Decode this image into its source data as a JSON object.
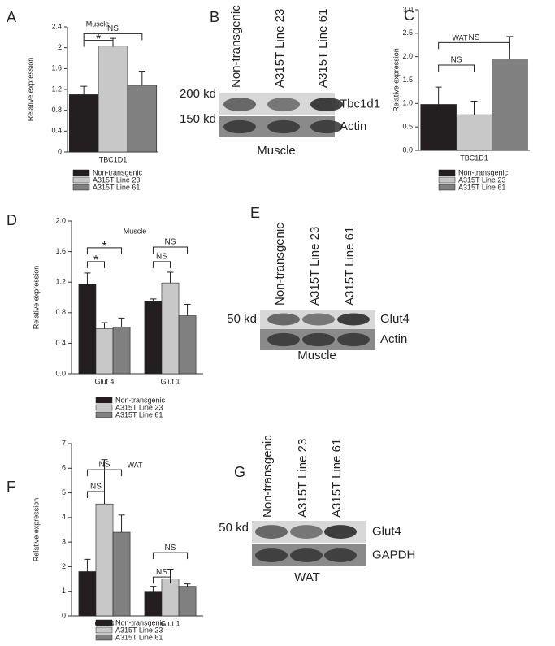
{
  "chart_data": [
    {
      "type": "bar",
      "panel": "A",
      "title": "Muscle",
      "ylabel": "Relative expression",
      "categories": [
        "TBC1D1"
      ],
      "series": [
        {
          "name": "Non-transgenic",
          "color": "#231f20",
          "values": [
            1.1
          ],
          "errors": [
            0.16
          ]
        },
        {
          "name": "A315T Line 23",
          "color": "#c8c8c8",
          "values": [
            2.03
          ],
          "errors": [
            0.15
          ]
        },
        {
          "name": "A315T Line 61",
          "color": "#808080",
          "values": [
            1.28
          ],
          "errors": [
            0.27
          ]
        }
      ],
      "ylim": [
        0,
        2.4
      ],
      "yticks": [
        0,
        0.4,
        0.8,
        1.2,
        1.6,
        2,
        2.4
      ],
      "annotations": [
        "*",
        "NS"
      ]
    },
    {
      "type": "bar",
      "panel": "C",
      "title": "WAT",
      "ylabel": "Relative expression",
      "categories": [
        "TBC1D1"
      ],
      "series": [
        {
          "name": "Non-transgenic",
          "color": "#231f20",
          "values": [
            0.98
          ],
          "errors": [
            0.37
          ]
        },
        {
          "name": "A315T Line 23",
          "color": "#c8c8c8",
          "values": [
            0.76
          ],
          "errors": [
            0.29
          ]
        },
        {
          "name": "A315T Line 61",
          "color": "#808080",
          "values": [
            1.95
          ],
          "errors": [
            0.48
          ]
        }
      ],
      "ylim": [
        0,
        3
      ],
      "yticks": [
        {
          "value": 0,
          "label": "0.0"
        },
        {
          "value": 0.5,
          "label": "0.5"
        },
        {
          "value": 1,
          "label": "1.0"
        },
        {
          "value": 1.5,
          "label": "1.5"
        },
        {
          "value": 2,
          "label": "2.0"
        },
        {
          "value": 2.5,
          "label": "2.5"
        },
        {
          "value": 3,
          "label": "3.0"
        }
      ],
      "annotations": [
        "NS",
        "NS"
      ]
    },
    {
      "type": "bar",
      "panel": "D",
      "title": "Muscle",
      "ylabel": "Relative expression",
      "categories": [
        "Glut 4",
        "Glut 1"
      ],
      "series": [
        {
          "name": "Non-transgenic",
          "color": "#231f20",
          "values": [
            1.17,
            0.95
          ],
          "errors": [
            0.15,
            0.03
          ]
        },
        {
          "name": "A315T Line 23",
          "color": "#c8c8c8",
          "values": [
            0.59,
            1.19
          ],
          "errors": [
            0.08,
            0.14
          ]
        },
        {
          "name": "A315T Line 61",
          "color": "#808080",
          "values": [
            0.61,
            0.76
          ],
          "errors": [
            0.12,
            0.15
          ]
        }
      ],
      "ylim": [
        0,
        2
      ],
      "yticks": [
        {
          "value": 0,
          "label": "0.0"
        },
        {
          "value": 0.4,
          "label": "0.4"
        },
        {
          "value": 0.8,
          "label": "0.8"
        },
        {
          "value": 1.2,
          "label": "1.2"
        },
        {
          "value": 1.6,
          "label": "1.6"
        },
        {
          "value": 2,
          "label": "2.0"
        }
      ],
      "annotations": [
        "*",
        "*",
        "NS",
        "NS"
      ]
    },
    {
      "type": "bar",
      "panel": "F",
      "title": "WAT",
      "ylabel": "Relative expression",
      "categories": [
        "Glut 4",
        "Glut 1"
      ],
      "series": [
        {
          "name": "Non-transgenic",
          "color": "#231f20",
          "values": [
            1.8,
            1.0
          ],
          "errors": [
            0.5,
            0.2
          ]
        },
        {
          "name": "A315T Line 23",
          "color": "#c8c8c8",
          "values": [
            4.55,
            1.5
          ],
          "errors": [
            1.8,
            0.4
          ]
        },
        {
          "name": "A315T Line 61",
          "color": "#808080",
          "values": [
            3.4,
            1.2
          ],
          "errors": [
            0.7,
            0.1
          ]
        }
      ],
      "ylim": [
        0,
        7
      ],
      "yticks": [
        0,
        1,
        2,
        3,
        4,
        5,
        6,
        7
      ],
      "annotations": [
        "NS",
        "NS",
        "NS",
        "NS"
      ]
    }
  ],
  "blots": [
    {
      "panel": "B",
      "lanes": [
        "Non-transgenic",
        "A315T Line 23",
        "A315T Line 61"
      ],
      "markers": [
        "200 kd",
        "150 kd"
      ],
      "bands": [
        "Tbc1d1",
        "Actin"
      ],
      "tissue": "Muscle"
    },
    {
      "panel": "E",
      "lanes": [
        "Non-transgenic",
        "A315T Line 23",
        "A315T Line 61"
      ],
      "markers": [
        "50 kd"
      ],
      "bands": [
        "Glut4",
        "Actin"
      ],
      "tissue": "Muscle"
    },
    {
      "panel": "G",
      "lanes": [
        "Non-transgenic",
        "A315T Line 23",
        "A315T Line 61"
      ],
      "markers": [
        "50 kd"
      ],
      "bands": [
        "Glut4",
        "GAPDH"
      ],
      "tissue": "WAT"
    }
  ]
}
